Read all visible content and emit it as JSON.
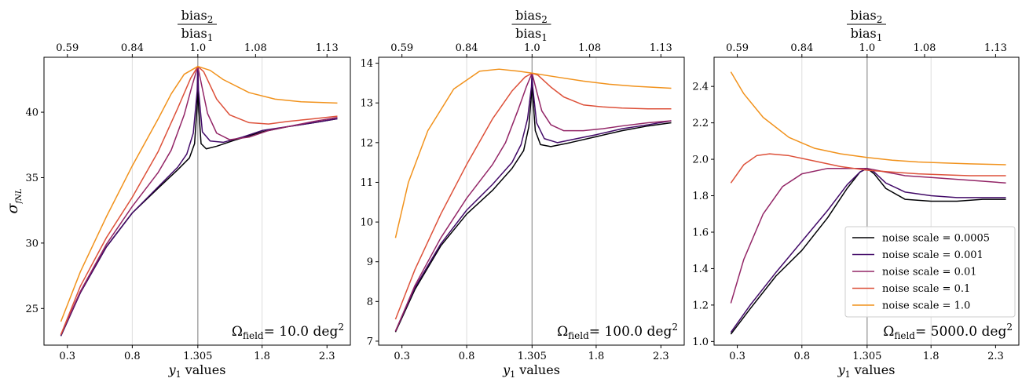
{
  "figure": {
    "x_label": "y",
    "x_label_sub": "1",
    "x_label_rest": " values",
    "y_label": "σ",
    "y_label_sub": "fNL",
    "top_label_num": "bias",
    "top_label_num_sub": "2",
    "top_label_den": "bias",
    "top_label_den_sub": "1",
    "annotation_prefix": "Ω",
    "annotation_sub": "field",
    "annotation_unit": "deg",
    "annotation_unit_sup": "2"
  },
  "chart_data": [
    {
      "type": "line",
      "xlim": [
        0.12,
        2.48
      ],
      "ylim": [
        22.2,
        44.2
      ],
      "x_ticks": [
        0.3,
        0.8,
        1.305,
        1.8,
        2.3
      ],
      "x_tick_labels": [
        "0.3",
        "0.8",
        "1.305",
        "1.8",
        "2.3"
      ],
      "y_ticks": [
        25,
        30,
        35,
        40
      ],
      "y_tick_labels": [
        "25",
        "30",
        "35",
        "40"
      ],
      "top_ticks_x": [
        0.3,
        0.8,
        1.305,
        1.75,
        2.3
      ],
      "top_tick_labels": [
        "0.59",
        "0.84",
        "1.0",
        "1.08",
        "1.13"
      ],
      "vlines": [
        0.8,
        1.305,
        1.8
      ],
      "annotation_value": "10.0",
      "series": [
        {
          "name": "noise scale = 0.0005",
          "color": "#000004",
          "x": [
            0.25,
            0.4,
            0.6,
            0.8,
            1.0,
            1.15,
            1.24,
            1.28,
            1.3,
            1.305,
            1.31,
            1.33,
            1.37,
            1.45,
            1.6,
            1.8,
            2.0,
            2.2,
            2.38
          ],
          "y": [
            22.9,
            26.2,
            29.7,
            32.3,
            34.2,
            35.6,
            36.5,
            37.6,
            40.5,
            43.5,
            40.6,
            37.6,
            37.2,
            37.4,
            37.9,
            38.5,
            38.9,
            39.2,
            39.5
          ]
        },
        {
          "name": "noise scale = 0.001",
          "color": "#420a68",
          "x": [
            0.25,
            0.4,
            0.6,
            0.8,
            1.0,
            1.15,
            1.22,
            1.27,
            1.3,
            1.305,
            1.31,
            1.34,
            1.4,
            1.5,
            1.65,
            1.8,
            2.0,
            2.2,
            2.38
          ],
          "y": [
            22.9,
            26.2,
            29.7,
            32.3,
            34.3,
            35.8,
            36.8,
            38.4,
            41.6,
            43.5,
            41.7,
            38.5,
            37.8,
            37.7,
            38.1,
            38.6,
            38.9,
            39.2,
            39.5
          ]
        },
        {
          "name": "noise scale = 0.01",
          "color": "#932667",
          "x": [
            0.25,
            0.4,
            0.6,
            0.8,
            1.0,
            1.1,
            1.2,
            1.26,
            1.305,
            1.34,
            1.38,
            1.45,
            1.55,
            1.7,
            1.85,
            2.0,
            2.2,
            2.38
          ],
          "y": [
            23.0,
            26.3,
            29.9,
            32.8,
            35.4,
            37.1,
            39.8,
            42.0,
            43.5,
            41.8,
            39.9,
            38.4,
            37.9,
            38.1,
            38.6,
            38.9,
            39.3,
            39.6
          ]
        },
        {
          "name": "noise scale = 0.1",
          "color": "#dd513a",
          "x": [
            0.25,
            0.4,
            0.6,
            0.8,
            1.0,
            1.15,
            1.25,
            1.305,
            1.35,
            1.45,
            1.55,
            1.7,
            1.85,
            2.0,
            2.2,
            2.38
          ],
          "y": [
            23.0,
            26.7,
            30.4,
            33.5,
            37.0,
            40.3,
            42.6,
            43.5,
            43.1,
            41.0,
            39.8,
            39.2,
            39.1,
            39.3,
            39.5,
            39.7
          ]
        },
        {
          "name": "noise scale = 1.0",
          "color": "#f1921c",
          "x": [
            0.25,
            0.4,
            0.6,
            0.8,
            1.0,
            1.1,
            1.2,
            1.305,
            1.4,
            1.5,
            1.7,
            1.9,
            2.1,
            2.38
          ],
          "y": [
            24.0,
            27.8,
            32.0,
            35.9,
            39.5,
            41.4,
            42.9,
            43.5,
            43.2,
            42.5,
            41.5,
            41.0,
            40.8,
            40.7
          ]
        }
      ]
    },
    {
      "type": "line",
      "xlim": [
        0.12,
        2.48
      ],
      "ylim": [
        6.9,
        14.15
      ],
      "x_ticks": [
        0.3,
        0.8,
        1.305,
        1.8,
        2.3
      ],
      "x_tick_labels": [
        "0.3",
        "0.8",
        "1.305",
        "1.8",
        "2.3"
      ],
      "y_ticks": [
        7,
        8,
        9,
        10,
        11,
        12,
        13,
        14
      ],
      "y_tick_labels": [
        "7",
        "8",
        "9",
        "10",
        "11",
        "12",
        "13",
        "14"
      ],
      "top_ticks_x": [
        0.3,
        0.8,
        1.305,
        1.75,
        2.3
      ],
      "top_tick_labels": [
        "0.59",
        "0.84",
        "1.0",
        "1.08",
        "1.13"
      ],
      "vlines": [
        0.8,
        1.305,
        1.8
      ],
      "annotation_value": "100.0",
      "series": [
        {
          "name": "noise scale = 0.0005",
          "color": "#000004",
          "x": [
            0.25,
            0.4,
            0.6,
            0.8,
            1.0,
            1.15,
            1.24,
            1.28,
            1.3,
            1.305,
            1.31,
            1.33,
            1.37,
            1.45,
            1.6,
            1.8,
            2.0,
            2.2,
            2.38
          ],
          "y": [
            7.23,
            8.3,
            9.4,
            10.2,
            10.8,
            11.35,
            11.8,
            12.4,
            13.2,
            13.75,
            13.2,
            12.3,
            11.95,
            11.9,
            12.0,
            12.15,
            12.3,
            12.42,
            12.5
          ]
        },
        {
          "name": "noise scale = 0.001",
          "color": "#420a68",
          "x": [
            0.25,
            0.4,
            0.6,
            0.8,
            1.0,
            1.15,
            1.22,
            1.27,
            1.3,
            1.305,
            1.31,
            1.34,
            1.4,
            1.5,
            1.65,
            1.8,
            2.0,
            2.2,
            2.38
          ],
          "y": [
            7.25,
            8.35,
            9.45,
            10.3,
            10.95,
            11.5,
            11.95,
            12.6,
            13.4,
            13.75,
            13.4,
            12.5,
            12.1,
            12.0,
            12.1,
            12.2,
            12.35,
            12.45,
            12.55
          ]
        },
        {
          "name": "noise scale = 0.01",
          "color": "#932667",
          "x": [
            0.25,
            0.4,
            0.6,
            0.8,
            1.0,
            1.1,
            1.2,
            1.26,
            1.305,
            1.34,
            1.38,
            1.45,
            1.55,
            1.7,
            1.85,
            2.0,
            2.2,
            2.38
          ],
          "y": [
            7.25,
            8.4,
            9.6,
            10.6,
            11.45,
            12.0,
            12.85,
            13.4,
            13.75,
            13.3,
            12.8,
            12.45,
            12.3,
            12.3,
            12.35,
            12.42,
            12.5,
            12.55
          ]
        },
        {
          "name": "noise scale = 0.1",
          "color": "#dd513a",
          "x": [
            0.25,
            0.4,
            0.6,
            0.8,
            1.0,
            1.15,
            1.25,
            1.305,
            1.35,
            1.45,
            1.55,
            1.7,
            1.85,
            2.0,
            2.2,
            2.38
          ],
          "y": [
            7.55,
            8.8,
            10.2,
            11.45,
            12.6,
            13.3,
            13.65,
            13.75,
            13.7,
            13.4,
            13.15,
            12.95,
            12.9,
            12.87,
            12.85,
            12.85
          ]
        },
        {
          "name": "noise scale = 1.0",
          "color": "#f1921c",
          "x": [
            0.25,
            0.35,
            0.5,
            0.7,
            0.9,
            1.05,
            1.2,
            1.305,
            1.5,
            1.7,
            1.9,
            2.1,
            2.38
          ],
          "y": [
            9.6,
            11.0,
            12.3,
            13.35,
            13.8,
            13.85,
            13.8,
            13.75,
            13.65,
            13.55,
            13.47,
            13.42,
            13.37
          ]
        }
      ]
    },
    {
      "type": "line",
      "xlim": [
        0.12,
        2.48
      ],
      "ylim": [
        0.98,
        2.56
      ],
      "x_ticks": [
        0.3,
        0.8,
        1.305,
        1.8,
        2.3
      ],
      "x_tick_labels": [
        "0.3",
        "0.8",
        "1.305",
        "1.8",
        "2.3"
      ],
      "y_ticks": [
        1.0,
        1.2,
        1.4,
        1.6,
        1.8,
        2.0,
        2.2,
        2.4
      ],
      "y_tick_labels": [
        "1.0",
        "1.2",
        "1.4",
        "1.6",
        "1.8",
        "2.0",
        "2.2",
        "2.4"
      ],
      "top_ticks_x": [
        0.3,
        0.8,
        1.305,
        1.75,
        2.3
      ],
      "top_tick_labels": [
        "0.59",
        "0.84",
        "1.0",
        "1.08",
        "1.13"
      ],
      "vlines": [
        0.8,
        1.305,
        1.8
      ],
      "annotation_value": "5000.0",
      "legend_position": "lower-right",
      "series": [
        {
          "name": "noise scale = 0.0005",
          "color": "#000004",
          "x": [
            0.25,
            0.4,
            0.6,
            0.8,
            1.0,
            1.15,
            1.25,
            1.305,
            1.36,
            1.45,
            1.6,
            1.8,
            2.0,
            2.2,
            2.38
          ],
          "y": [
            1.04,
            1.18,
            1.36,
            1.5,
            1.68,
            1.84,
            1.93,
            1.95,
            1.92,
            1.84,
            1.78,
            1.77,
            1.77,
            1.78,
            1.78
          ]
        },
        {
          "name": "noise scale = 0.001",
          "color": "#420a68",
          "x": [
            0.25,
            0.4,
            0.6,
            0.8,
            1.0,
            1.15,
            1.25,
            1.305,
            1.36,
            1.45,
            1.6,
            1.8,
            2.0,
            2.2,
            2.38
          ],
          "y": [
            1.05,
            1.2,
            1.38,
            1.55,
            1.72,
            1.86,
            1.93,
            1.95,
            1.93,
            1.87,
            1.82,
            1.8,
            1.79,
            1.79,
            1.79
          ]
        },
        {
          "name": "noise scale = 0.01",
          "color": "#932667",
          "x": [
            0.25,
            0.35,
            0.5,
            0.65,
            0.8,
            1.0,
            1.15,
            1.305,
            1.45,
            1.6,
            1.8,
            2.0,
            2.2,
            2.38
          ],
          "y": [
            1.21,
            1.45,
            1.7,
            1.85,
            1.92,
            1.95,
            1.95,
            1.95,
            1.93,
            1.91,
            1.9,
            1.89,
            1.88,
            1.87
          ]
        },
        {
          "name": "noise scale = 0.1",
          "color": "#dd513a",
          "x": [
            0.25,
            0.35,
            0.45,
            0.55,
            0.7,
            0.9,
            1.1,
            1.305,
            1.5,
            1.7,
            1.9,
            2.1,
            2.38
          ],
          "y": [
            1.87,
            1.97,
            2.02,
            2.03,
            2.02,
            1.99,
            1.96,
            1.94,
            1.93,
            1.92,
            1.915,
            1.91,
            1.91
          ]
        },
        {
          "name": "noise scale = 1.0",
          "color": "#f1921c",
          "x": [
            0.25,
            0.35,
            0.5,
            0.7,
            0.9,
            1.1,
            1.305,
            1.5,
            1.7,
            1.9,
            2.1,
            2.38
          ],
          "y": [
            2.48,
            2.36,
            2.23,
            2.12,
            2.06,
            2.03,
            2.01,
            1.995,
            1.985,
            1.98,
            1.975,
            1.97
          ]
        }
      ]
    }
  ]
}
